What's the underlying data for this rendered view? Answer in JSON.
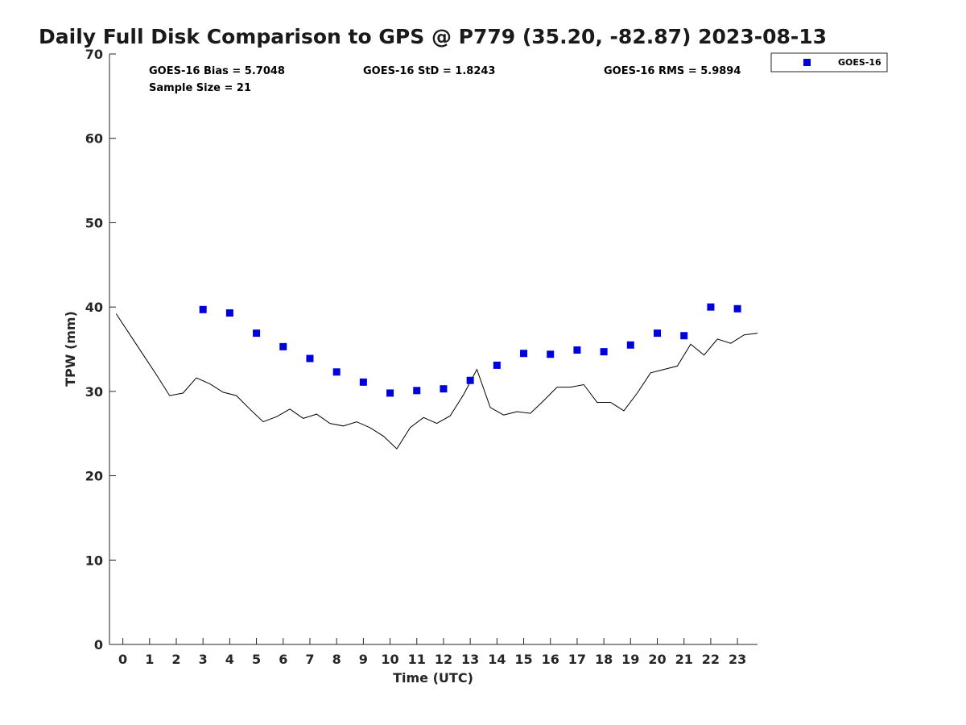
{
  "chart_data": {
    "type": "scatter",
    "title": "Daily Full Disk Comparison to GPS @ P779 (35.20, -82.87) 2023-08-13",
    "xlabel": "Time (UTC)",
    "ylabel": "TPW (mm)",
    "xlim": [
      -0.5,
      23.75
    ],
    "ylim": [
      0,
      70
    ],
    "xticks": [
      0,
      1,
      2,
      3,
      4,
      5,
      6,
      7,
      8,
      9,
      10,
      11,
      12,
      13,
      14,
      15,
      16,
      17,
      18,
      19,
      20,
      21,
      22,
      23
    ],
    "yticks": [
      0,
      10,
      20,
      30,
      40,
      50,
      60,
      70
    ],
    "grid": false,
    "legend_position": "top-right",
    "stats": {
      "bias": "GOES-16 Bias = 5.7048",
      "std": "GOES-16 StD = 1.8243",
      "rms": "GOES-16 RMS = 5.9894",
      "sample": "Sample Size = 21"
    },
    "series": [
      {
        "name": "GOES-16",
        "kind": "scatter",
        "marker": "square",
        "color": "#0000dd",
        "x": [
          3,
          4,
          5,
          6,
          7,
          8,
          9,
          10,
          11,
          12,
          13,
          14,
          15,
          16,
          17,
          18,
          19,
          20,
          21,
          22,
          23
        ],
        "y": [
          39.7,
          39.3,
          36.9,
          35.3,
          33.9,
          32.3,
          31.1,
          29.8,
          30.1,
          30.3,
          31.3,
          33.1,
          34.5,
          34.4,
          34.9,
          34.7,
          35.5,
          36.9,
          36.6,
          40.0,
          39.8
        ]
      },
      {
        "kind": "line",
        "color": "#000000",
        "x": [
          -0.25,
          0.25,
          0.75,
          1.25,
          1.75,
          2.25,
          2.75,
          3.25,
          3.75,
          4.25,
          4.75,
          5.25,
          5.75,
          6.25,
          6.75,
          7.25,
          7.75,
          8.25,
          8.75,
          9.25,
          9.75,
          10.25,
          10.75,
          11.25,
          11.75,
          12.25,
          12.75,
          13.25,
          13.75,
          14.25,
          14.75,
          15.25,
          15.75,
          16.25,
          16.75,
          17.25,
          17.75,
          18.25,
          18.75,
          19.25,
          19.75,
          20.25,
          20.75,
          21.25,
          21.75,
          22.25,
          22.75,
          23.25,
          23.75
        ],
        "y": [
          39.2,
          36.8,
          34.4,
          32.0,
          29.5,
          29.8,
          31.6,
          30.9,
          29.9,
          29.5,
          27.9,
          26.4,
          27.0,
          27.9,
          26.8,
          27.3,
          26.2,
          25.9,
          26.4,
          25.7,
          24.7,
          23.2,
          25.7,
          26.9,
          26.2,
          27.1,
          29.6,
          32.6,
          28.1,
          27.2,
          27.6,
          27.4,
          28.9,
          30.5,
          30.5,
          30.8,
          28.7,
          28.7,
          27.7,
          29.8,
          32.2,
          32.6,
          33.0,
          35.6,
          34.3,
          36.2,
          35.7,
          36.7,
          36.9
        ]
      }
    ]
  }
}
